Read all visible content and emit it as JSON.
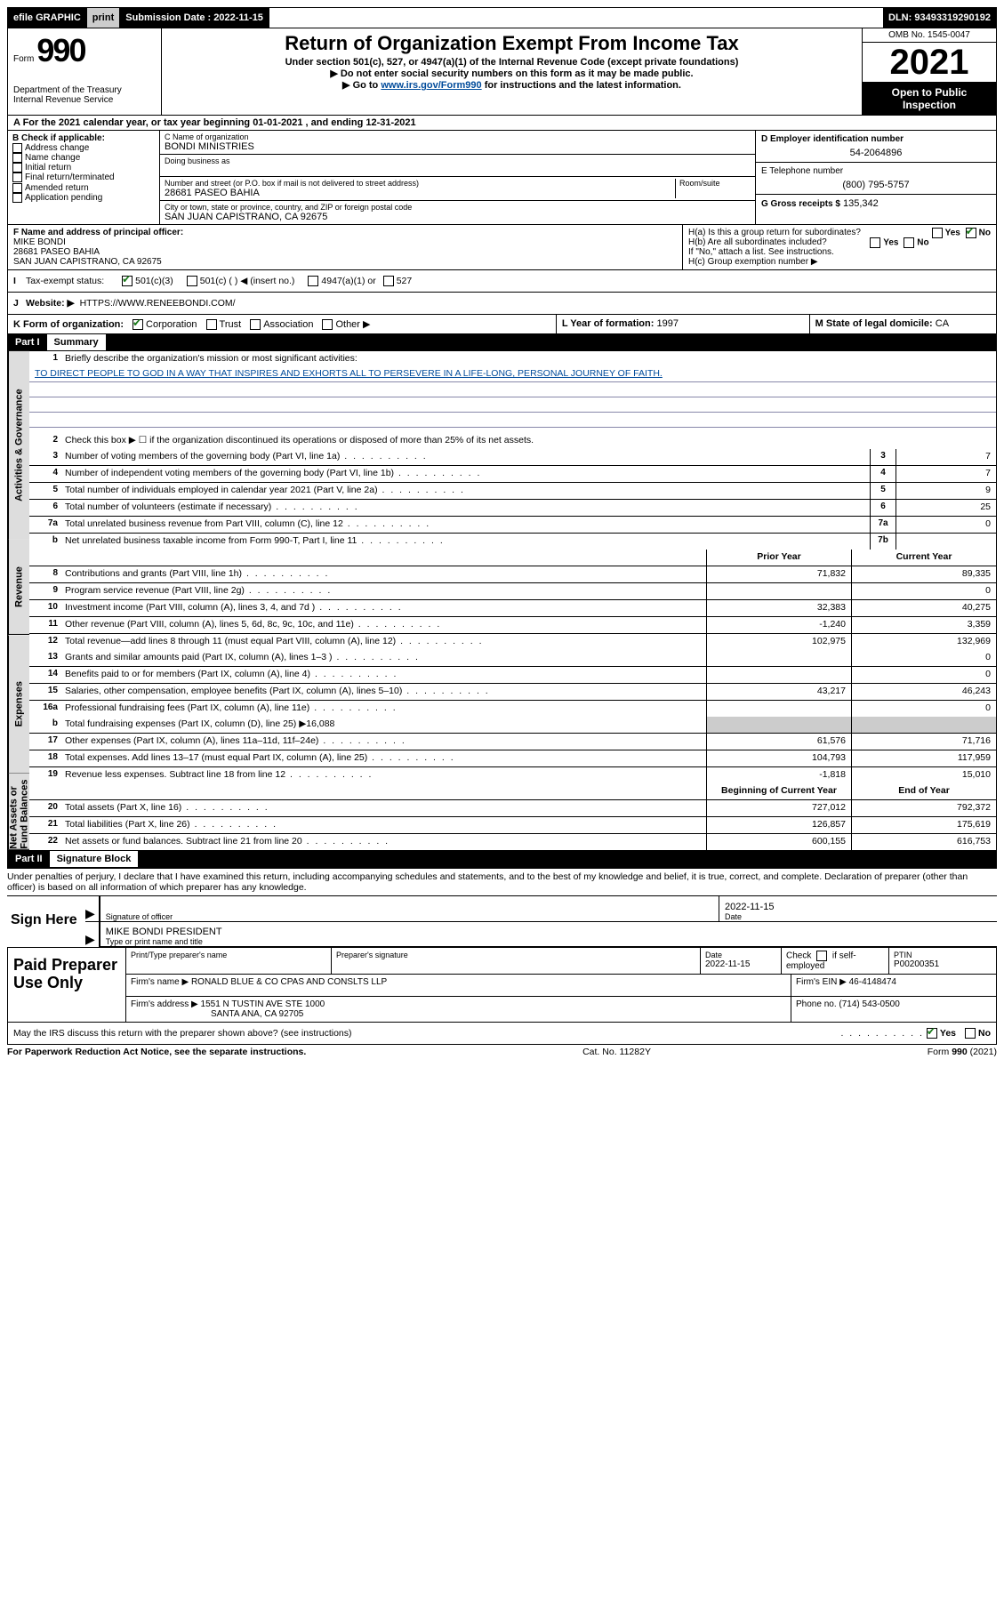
{
  "topbar": {
    "efile": "efile GRAPHIC",
    "print": "print",
    "submission_lbl": "Submission Date : 2022-11-15",
    "dln": "DLN: 93493319290192"
  },
  "header": {
    "form_lbl": "Form",
    "form_num": "990",
    "dept": "Department of the Treasury\nInternal Revenue Service",
    "title": "Return of Organization Exempt From Income Tax",
    "sub1": "Under section 501(c), 527, or 4947(a)(1) of the Internal Revenue Code (except private foundations)",
    "sub2": "▶ Do not enter social security numbers on this form as it may be made public.",
    "sub3_pre": "▶ Go to ",
    "sub3_link": "www.irs.gov/Form990",
    "sub3_post": " for instructions and the latest information.",
    "omb": "OMB No. 1545-0047",
    "year": "2021",
    "open": "Open to Public Inspection"
  },
  "lineA": "A  For the 2021 calendar year, or tax year beginning 01-01-2021   , and ending 12-31-2021",
  "secB": {
    "heading": "B Check if applicable:",
    "opts": [
      "Address change",
      "Name change",
      "Initial return",
      "Final return/terminated",
      "Amended return",
      "Application pending"
    ]
  },
  "secC": {
    "name_lbl": "C Name of organization",
    "name": "BONDI MINISTRIES",
    "dba_lbl": "Doing business as",
    "street_lbl": "Number and street (or P.O. box if mail is not delivered to street address)",
    "room_lbl": "Room/suite",
    "street": "28681 PASEO BAHIA",
    "city_lbl": "City or town, state or province, country, and ZIP or foreign postal code",
    "city": "SAN JUAN CAPISTRANO, CA  92675"
  },
  "secD": {
    "lbl": "D Employer identification number",
    "val": "54-2064896"
  },
  "secE": {
    "lbl": "E Telephone number",
    "val": "(800) 795-5757"
  },
  "secG": {
    "lbl": "G Gross receipts $",
    "val": "135,342"
  },
  "secF": {
    "lbl": "F  Name and address of principal officer:",
    "name": "MIKE BONDI",
    "addr1": "28681 PASEO BAHIA",
    "addr2": "SAN JUAN CAPISTRANO, CA  92675"
  },
  "secH": {
    "a": "H(a)  Is this a group return for subordinates?",
    "b": "H(b)  Are all subordinates included?",
    "b_note": "If \"No,\" attach a list. See instructions.",
    "c": "H(c)  Group exemption number ▶"
  },
  "lineI": {
    "lbl": "Tax-exempt status:",
    "o1": "501(c)(3)",
    "o2": "501(c) (  ) ◀ (insert no.)",
    "o3": "4947(a)(1) or",
    "o4": "527"
  },
  "lineJ": {
    "lbl": "Website: ▶",
    "val": "HTTPS://WWW.RENEEBONDI.COM/"
  },
  "lineK": {
    "lbl": "K Form of organization:",
    "opts": [
      "Corporation",
      "Trust",
      "Association",
      "Other ▶"
    ]
  },
  "lineL": {
    "lbl": "L Year of formation:",
    "val": "1997"
  },
  "lineM": {
    "lbl": "M State of legal domicile:",
    "val": "CA"
  },
  "partI": {
    "tag": "Part I",
    "title": "Summary"
  },
  "vtabs": [
    "Activities & Governance",
    "Revenue",
    "Expenses",
    "Net Assets or Fund Balances"
  ],
  "sum": {
    "l1_lbl": "Briefly describe the organization's mission or most significant activities:",
    "mission": "TO DIRECT PEOPLE TO GOD IN A WAY THAT INSPIRES AND EXHORTS ALL TO PERSEVERE IN A LIFE-LONG, PERSONAL JOURNEY OF FAITH.",
    "l2": "Check this box ▶ ☐  if the organization discontinued its operations or disposed of more than 25% of its net assets.",
    "rows_governance": [
      {
        "n": "3",
        "lbl": "Number of voting members of the governing body (Part VI, line 1a)",
        "box": "3",
        "val": "7"
      },
      {
        "n": "4",
        "lbl": "Number of independent voting members of the governing body (Part VI, line 1b)",
        "box": "4",
        "val": "7"
      },
      {
        "n": "5",
        "lbl": "Total number of individuals employed in calendar year 2021 (Part V, line 2a)",
        "box": "5",
        "val": "9"
      },
      {
        "n": "6",
        "lbl": "Total number of volunteers (estimate if necessary)",
        "box": "6",
        "val": "25"
      },
      {
        "n": "7a",
        "lbl": "Total unrelated business revenue from Part VIII, column (C), line 12",
        "box": "7a",
        "val": "0"
      },
      {
        "n": "b",
        "lbl": "Net unrelated business taxable income from Form 990-T, Part I, line 11",
        "box": "7b",
        "val": ""
      }
    ],
    "hdr_prior": "Prior Year",
    "hdr_curr": "Current Year",
    "rows_revenue": [
      {
        "n": "8",
        "lbl": "Contributions and grants (Part VIII, line 1h)",
        "p": "71,832",
        "c": "89,335"
      },
      {
        "n": "9",
        "lbl": "Program service revenue (Part VIII, line 2g)",
        "p": "",
        "c": "0"
      },
      {
        "n": "10",
        "lbl": "Investment income (Part VIII, column (A), lines 3, 4, and 7d )",
        "p": "32,383",
        "c": "40,275"
      },
      {
        "n": "11",
        "lbl": "Other revenue (Part VIII, column (A), lines 5, 6d, 8c, 9c, 10c, and 11e)",
        "p": "-1,240",
        "c": "3,359"
      },
      {
        "n": "12",
        "lbl": "Total revenue—add lines 8 through 11 (must equal Part VIII, column (A), line 12)",
        "p": "102,975",
        "c": "132,969"
      }
    ],
    "rows_expenses": [
      {
        "n": "13",
        "lbl": "Grants and similar amounts paid (Part IX, column (A), lines 1–3 )",
        "p": "",
        "c": "0"
      },
      {
        "n": "14",
        "lbl": "Benefits paid to or for members (Part IX, column (A), line 4)",
        "p": "",
        "c": "0"
      },
      {
        "n": "15",
        "lbl": "Salaries, other compensation, employee benefits (Part IX, column (A), lines 5–10)",
        "p": "43,217",
        "c": "46,243"
      },
      {
        "n": "16a",
        "lbl": "Professional fundraising fees (Part IX, column (A), line 11e)",
        "p": "",
        "c": "0"
      }
    ],
    "l16b": "Total fundraising expenses (Part IX, column (D), line 25) ▶16,088",
    "rows_expenses2": [
      {
        "n": "17",
        "lbl": "Other expenses (Part IX, column (A), lines 11a–11d, 11f–24e)",
        "p": "61,576",
        "c": "71,716"
      },
      {
        "n": "18",
        "lbl": "Total expenses. Add lines 13–17 (must equal Part IX, column (A), line 25)",
        "p": "104,793",
        "c": "117,959"
      },
      {
        "n": "19",
        "lbl": "Revenue less expenses. Subtract line 18 from line 12",
        "p": "-1,818",
        "c": "15,010"
      }
    ],
    "hdr_begin": "Beginning of Current Year",
    "hdr_end": "End of Year",
    "rows_net": [
      {
        "n": "20",
        "lbl": "Total assets (Part X, line 16)",
        "p": "727,012",
        "c": "792,372"
      },
      {
        "n": "21",
        "lbl": "Total liabilities (Part X, line 26)",
        "p": "126,857",
        "c": "175,619"
      },
      {
        "n": "22",
        "lbl": "Net assets or fund balances. Subtract line 21 from line 20",
        "p": "600,155",
        "c": "616,753"
      }
    ]
  },
  "partII": {
    "tag": "Part II",
    "title": "Signature Block"
  },
  "sig": {
    "declare": "Under penalties of perjury, I declare that I have examined this return, including accompanying schedules and statements, and to the best of my knowledge and belief, it is true, correct, and complete. Declaration of preparer (other than officer) is based on all information of which preparer has any knowledge.",
    "here": "Sign Here",
    "sig_lbl": "Signature of officer",
    "date": "2022-11-15",
    "date_lbl": "Date",
    "name": "MIKE BONDI  PRESIDENT",
    "name_lbl": "Type or print name and title"
  },
  "paid": {
    "title": "Paid Preparer Use Only",
    "h1": "Print/Type preparer's name",
    "h2": "Preparer's signature",
    "h3": "Date",
    "date": "2022-11-15",
    "h4_a": "Check",
    "h4_b": "if self-employed",
    "h5": "PTIN",
    "ptin": "P00200351",
    "firm_name_lbl": "Firm's name    ▶",
    "firm_name": "RONALD BLUE & CO CPAS AND CONSLTS LLP",
    "firm_ein_lbl": "Firm's EIN ▶",
    "firm_ein": "46-4148474",
    "firm_addr_lbl": "Firm's address ▶",
    "firm_addr1": "1551 N TUSTIN AVE STE 1000",
    "firm_addr2": "SANTA ANA, CA  92705",
    "phone_lbl": "Phone no.",
    "phone": "(714) 543-0500"
  },
  "lineDiscuss": "May the IRS discuss this return with the preparer shown above? (see instructions)",
  "footer": {
    "left": "For Paperwork Reduction Act Notice, see the separate instructions.",
    "mid": "Cat. No. 11282Y",
    "right": "Form 990 (2021)"
  },
  "yes": "Yes",
  "no": "No"
}
